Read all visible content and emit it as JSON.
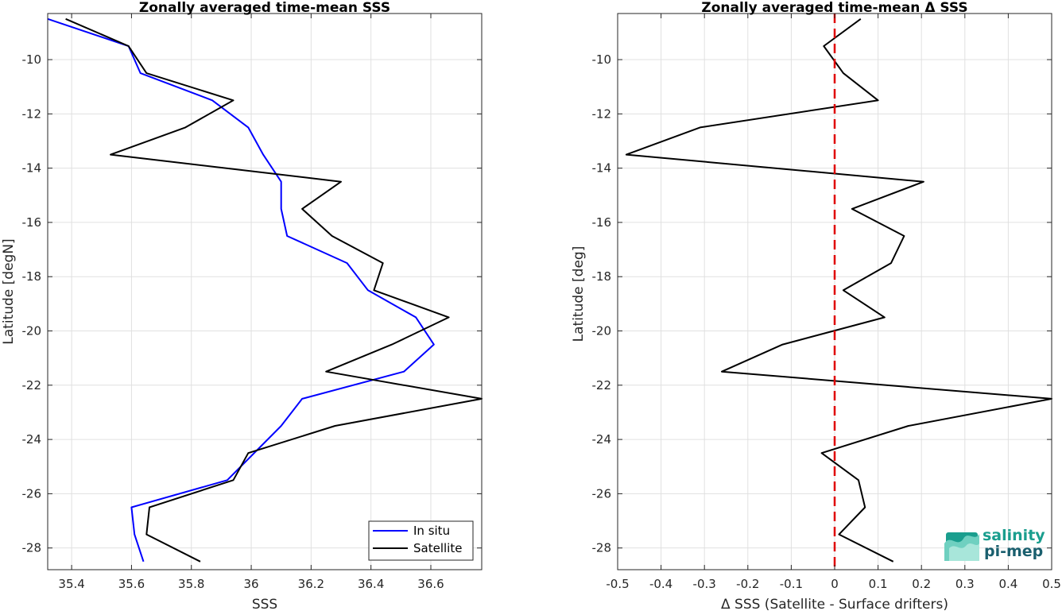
{
  "chart_data": [
    {
      "type": "line",
      "title": "Zonally averaged time-mean SSS",
      "xlabel": "SSS",
      "ylabel": "Latitude [degN]",
      "xlim": [
        35.32,
        36.77
      ],
      "ylim": [
        -28.8,
        -8.3
      ],
      "xticks": [
        35.4,
        35.6,
        35.8,
        36,
        36.2,
        36.4,
        36.6
      ],
      "xtick_labels": [
        "35.4",
        "35.6",
        "35.8",
        "36",
        "36.2",
        "36.4",
        "36.6"
      ],
      "yticks": [
        -10,
        -12,
        -14,
        -16,
        -18,
        -20,
        -22,
        -24,
        -26,
        -28
      ],
      "ytick_labels": [
        "-10",
        "-12",
        "-14",
        "-16",
        "-18",
        "-20",
        "-22",
        "-24",
        "-26",
        "-28"
      ],
      "grid": true,
      "legend_position": "bottom-right",
      "series": [
        {
          "name": "In situ",
          "color": "#0000ff",
          "x": [
            35.32,
            35.59,
            35.63,
            35.87,
            35.99,
            36.04,
            36.1,
            36.1,
            36.12,
            36.32,
            36.39,
            36.55,
            36.61,
            36.51,
            36.17,
            36.1,
            35.92,
            35.6,
            35.61,
            35.64
          ],
          "y": [
            -8.5,
            -9.5,
            -10.5,
            -11.5,
            -12.5,
            -13.5,
            -14.5,
            -15.5,
            -16.5,
            -17.5,
            -18.5,
            -19.5,
            -20.5,
            -21.5,
            -22.5,
            -23.5,
            -25.5,
            -26.5,
            -27.5,
            -28.5
          ]
        },
        {
          "name": "Satellite",
          "color": "#000000",
          "x": [
            35.38,
            35.59,
            35.65,
            35.94,
            35.78,
            35.53,
            36.3,
            36.17,
            36.27,
            36.44,
            36.41,
            36.66,
            36.47,
            36.25,
            36.77,
            36.28,
            35.99,
            35.94,
            35.66,
            35.65,
            35.83
          ],
          "y": [
            -8.5,
            -9.5,
            -10.5,
            -11.5,
            -12.5,
            -13.5,
            -14.5,
            -15.5,
            -16.5,
            -17.5,
            -18.5,
            -19.5,
            -20.5,
            -21.5,
            -22.5,
            -23.5,
            -24.5,
            -25.5,
            -26.5,
            -27.5,
            -28.5
          ]
        }
      ]
    },
    {
      "type": "line",
      "title": "Zonally averaged time-mean Δ SSS",
      "xlabel": "Δ SSS (Satellite - Surface drifters)",
      "ylabel": "Latitude [deg]",
      "xlim": [
        -0.5,
        0.5
      ],
      "ylim": [
        -28.8,
        -8.3
      ],
      "xticks": [
        -0.5,
        -0.4,
        -0.3,
        -0.2,
        -0.1,
        0,
        0.1,
        0.2,
        0.3,
        0.4,
        0.5
      ],
      "xtick_labels": [
        "-0.5",
        "-0.4",
        "-0.3",
        "-0.2",
        "-0.1",
        "0",
        "0.1",
        "0.2",
        "0.3",
        "0.4",
        "0.5"
      ],
      "yticks": [
        -10,
        -12,
        -14,
        -16,
        -18,
        -20,
        -22,
        -24,
        -26,
        -28
      ],
      "ytick_labels": [
        "-10",
        "-12",
        "-14",
        "-16",
        "-18",
        "-20",
        "-22",
        "-24",
        "-26",
        "-28"
      ],
      "grid": true,
      "reference_line": {
        "x": 0,
        "color": "#e00000",
        "style": "dashed"
      },
      "series": [
        {
          "color": "#000000",
          "x": [
            0.06,
            -0.025,
            0.02,
            0.1,
            -0.31,
            -0.48,
            0.205,
            0.04,
            0.16,
            0.13,
            0.02,
            0.115,
            -0.12,
            -0.26,
            0.5,
            0.17,
            -0.03,
            0.055,
            0.07,
            0.01,
            0.135
          ],
          "y": [
            -8.5,
            -9.5,
            -10.5,
            -11.5,
            -12.5,
            -13.5,
            -14.5,
            -15.5,
            -16.5,
            -17.5,
            -18.5,
            -19.5,
            -20.5,
            -21.5,
            -22.5,
            -23.5,
            -24.5,
            -25.5,
            -26.5,
            -27.5,
            -28.5
          ]
        }
      ]
    }
  ],
  "logo": {
    "line1": "salinity",
    "line2": "pi-mep",
    "color": "#1a9e8e"
  }
}
